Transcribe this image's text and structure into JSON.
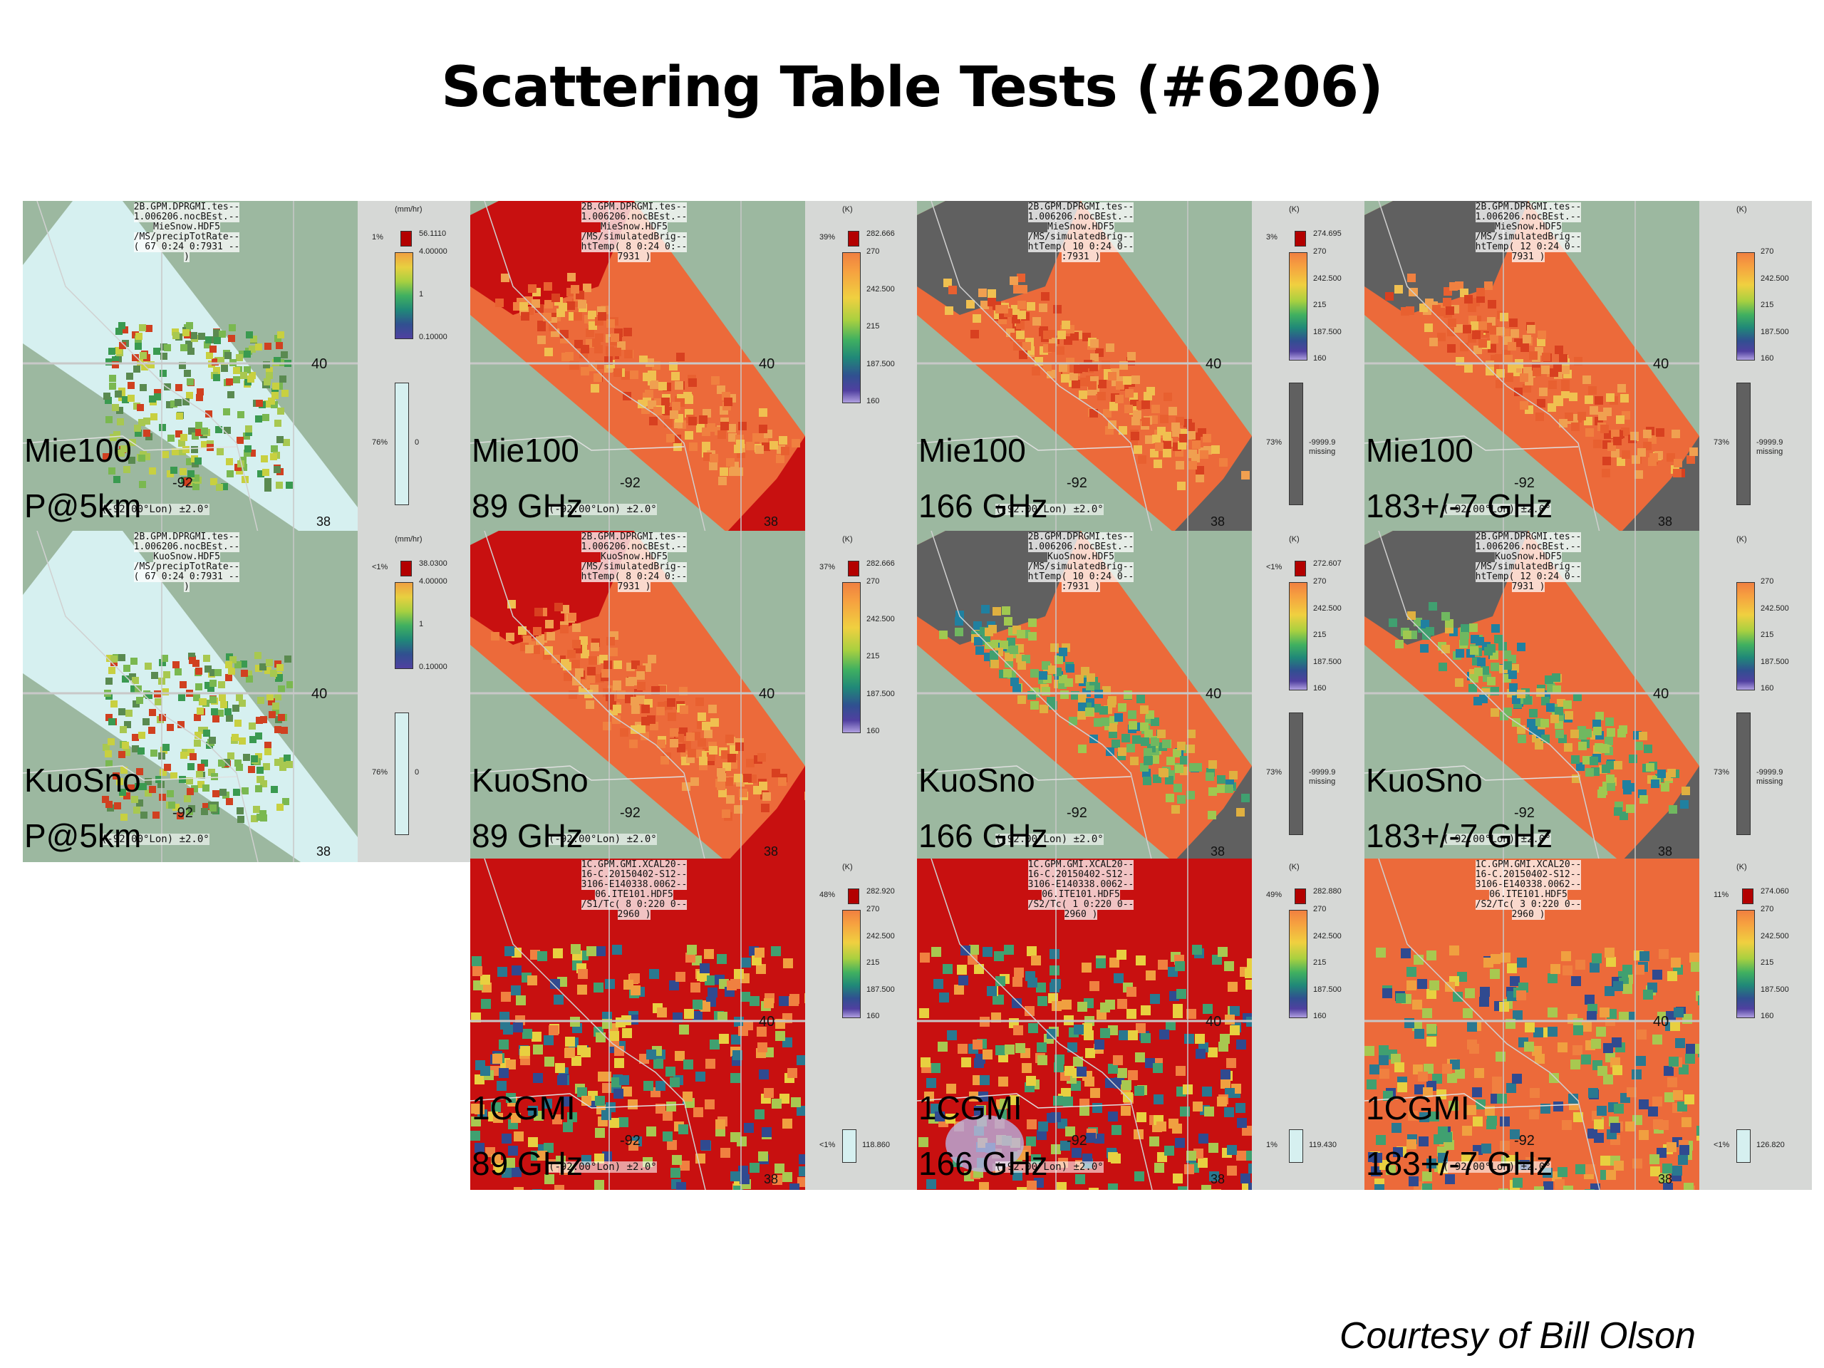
{
  "title": "Scattering Table Tests (#6206)",
  "credit": "Courtesy of Bill Olson",
  "panels": [
    {
      "id": "p1",
      "row": 0,
      "col": 0,
      "kind": "precip",
      "line1": "Mie100",
      "line2": "P@5km",
      "header": [
        "2B.GPM.DPRGMI.tes--",
        "1.006206.nocBEst.--",
        "MieSnow.HDF5",
        "/MS/precipTotRate--",
        "( 67 0:24 0:7931 --",
        ")"
      ],
      "units": "(mm/hr)",
      "over_pct": "1%",
      "over_val": "56.1110",
      "ticks": [
        "4.00000",
        "1",
        "0.10000"
      ],
      "miss_pct": "76%",
      "miss_val": "0",
      "miss_label": ""
    },
    {
      "id": "p2",
      "row": 0,
      "col": 1,
      "kind": "bt",
      "line1": "Mie100",
      "line2": "89 GHz",
      "header": [
        "2B.GPM.DPRGMI.tes--",
        "1.006206.nocBEst.--",
        "MieSnow.HDF5",
        "/MS/simulatedBrig--",
        "htTemp( 8 0:24 0:--",
        "7931 )"
      ],
      "units": "(K)",
      "over_pct": "39%",
      "over_val": "282.666",
      "ticks": [
        "270",
        "242.500",
        "215",
        "187.500",
        "160"
      ],
      "miss_pct": "",
      "miss_val": "",
      "miss_label": ""
    },
    {
      "id": "p3",
      "row": 0,
      "col": 2,
      "kind": "bt_gray",
      "line1": "Mie100",
      "line2": "166 GHz",
      "header": [
        "2B.GPM.DPRGMI.tes--",
        "1.006206.nocBEst.--",
        "MieSnow.HDF5",
        "/MS/simulatedBrig--",
        "htTemp( 10 0:24 0--",
        ":7931 )"
      ],
      "units": "(K)",
      "over_pct": "3%",
      "over_val": "274.695",
      "ticks": [
        "270",
        "242.500",
        "215",
        "187.500",
        "160"
      ],
      "miss_pct": "73%",
      "miss_val": "-9999.9",
      "miss_label": "missing"
    },
    {
      "id": "p4",
      "row": 0,
      "col": 3,
      "kind": "bt_gray",
      "line1": "Mie100",
      "line2": "183+/-7 GHz",
      "header": [
        "2B.GPM.DPRGMI.tes--",
        "1.006206.nocBEst.--",
        "MieSnow.HDF5",
        "/MS/simulatedBrig--",
        "htTemp( 12 0:24 0--",
        "7931 )"
      ],
      "units": "(K)",
      "over_pct": "",
      "over_val": "",
      "ticks": [
        "270",
        "242.500",
        "215",
        "187.500",
        "160"
      ],
      "miss_pct": "73%",
      "miss_val": "-9999.9",
      "miss_label": "missing"
    },
    {
      "id": "p5",
      "row": 1,
      "col": 0,
      "kind": "precip",
      "line1": "KuoSno",
      "line2": "P@5km",
      "header": [
        "2B.GPM.DPRGMI.tes--",
        "1.006206.nocBEst.--",
        "KuoSnow.HDF5",
        "/MS/precipTotRate--",
        "( 67 0:24 0:7931 --",
        ")"
      ],
      "units": "(mm/hr)",
      "over_pct": "<1%",
      "over_val": "38.0300",
      "ticks": [
        "4.00000",
        "1",
        "0.10000"
      ],
      "miss_pct": "76%",
      "miss_val": "0",
      "miss_label": ""
    },
    {
      "id": "p6",
      "row": 1,
      "col": 1,
      "kind": "bt",
      "line1": "KuoSno",
      "line2": "89 GHz",
      "header": [
        "2B.GPM.DPRGMI.tes--",
        "1.006206.nocBEst.--",
        "KuoSnow.HDF5",
        "/MS/simulatedBrig--",
        "htTemp( 8 0:24 0:--",
        "7931 )"
      ],
      "units": "(K)",
      "over_pct": "37%",
      "over_val": "282.666",
      "ticks": [
        "270",
        "242.500",
        "215",
        "187.500",
        "160"
      ],
      "miss_pct": "",
      "miss_val": "",
      "miss_label": ""
    },
    {
      "id": "p7",
      "row": 1,
      "col": 2,
      "kind": "bt_gray",
      "line1": "KuoSno",
      "line2": "166 GHz",
      "header": [
        "2B.GPM.DPRGMI.tes--",
        "1.006206.nocBEst.--",
        "KuoSnow.HDF5",
        "/MS/simulatedBrig--",
        "htTemp( 10 0:24 0--",
        ":7931 )"
      ],
      "units": "(K)",
      "over_pct": "<1%",
      "over_val": "272.607",
      "ticks": [
        "270",
        "242.500",
        "215",
        "187.500",
        "160"
      ],
      "miss_pct": "73%",
      "miss_val": "-9999.9",
      "miss_label": "missing"
    },
    {
      "id": "p8",
      "row": 1,
      "col": 3,
      "kind": "bt_gray",
      "line1": "KuoSno",
      "line2": "183+/-7 GHz",
      "header": [
        "2B.GPM.DPRGMI.tes--",
        "1.006206.nocBEst.--",
        "KuoSnow.HDF5",
        "/MS/simulatedBrig--",
        "htTemp( 12 0:24 0--",
        "7931 )"
      ],
      "units": "(K)",
      "over_pct": "",
      "over_val": "",
      "ticks": [
        "270",
        "242.500",
        "215",
        "187.500",
        "160"
      ],
      "miss_pct": "73%",
      "miss_val": "-9999.9",
      "miss_label": "missing"
    },
    {
      "id": "p9",
      "row": 2,
      "col": 1,
      "kind": "gmi",
      "line1": "1CGMI",
      "line2": "89 GHz",
      "header": [
        "1C.GPM.GMI.XCAL20--",
        "16-C.20150402-S12--",
        "3106-E140338.0062--",
        "06.ITE101.HDF5",
        "/S1/Tc( 8 0:220 0--",
        "2960 )"
      ],
      "units": "(K)",
      "over_pct": "48%",
      "over_val": "282.920",
      "ticks": [
        "270",
        "242.500",
        "215",
        "187.500",
        "160"
      ],
      "miss_pct": "<1%",
      "miss_val": "118.860",
      "miss_label": ""
    },
    {
      "id": "p10",
      "row": 2,
      "col": 2,
      "kind": "gmi",
      "line1": "1CGMI",
      "line2": "166 GHz",
      "header": [
        "1C.GPM.GMI.XCAL20--",
        "16-C.20150402-S12--",
        "3106-E140338.0062--",
        "06.ITE101.HDF5",
        "/S2/Tc( 1 0:220 0--",
        "2960 )"
      ],
      "units": "(K)",
      "over_pct": "49%",
      "over_val": "282.880",
      "ticks": [
        "270",
        "242.500",
        "215",
        "187.500",
        "160"
      ],
      "miss_pct": "1%",
      "miss_val": "119.430",
      "miss_label": ""
    },
    {
      "id": "p11",
      "row": 2,
      "col": 3,
      "kind": "gmi",
      "line1": "1CGMI",
      "line2": "183+/-7 GHz",
      "header": [
        "1C.GPM.GMI.XCAL20--",
        "16-C.20150402-S12--",
        "3106-E140338.0062--",
        "06.ITE101.HDF5",
        "/S2/Tc( 3 0:220 0--",
        "2960 )"
      ],
      "units": "(K)",
      "over_pct": "11%",
      "over_val": "274.060",
      "ticks": [
        "270",
        "242.500",
        "215",
        "187.500",
        "160"
      ],
      "miss_pct": "<1%",
      "miss_val": "126.820",
      "miss_label": ""
    }
  ],
  "map_labels": {
    "lat_upper": "40",
    "lat_lower": "38",
    "lon": "-92",
    "footer": "(-92.00°Lon) ±2.0°"
  },
  "colors": {
    "land": "#9cb8a0",
    "swath_red": "#c81010",
    "swath_orange": "#ec6a3a",
    "missing_gray": "#606060",
    "precip_bg": "#d6f0f0"
  }
}
